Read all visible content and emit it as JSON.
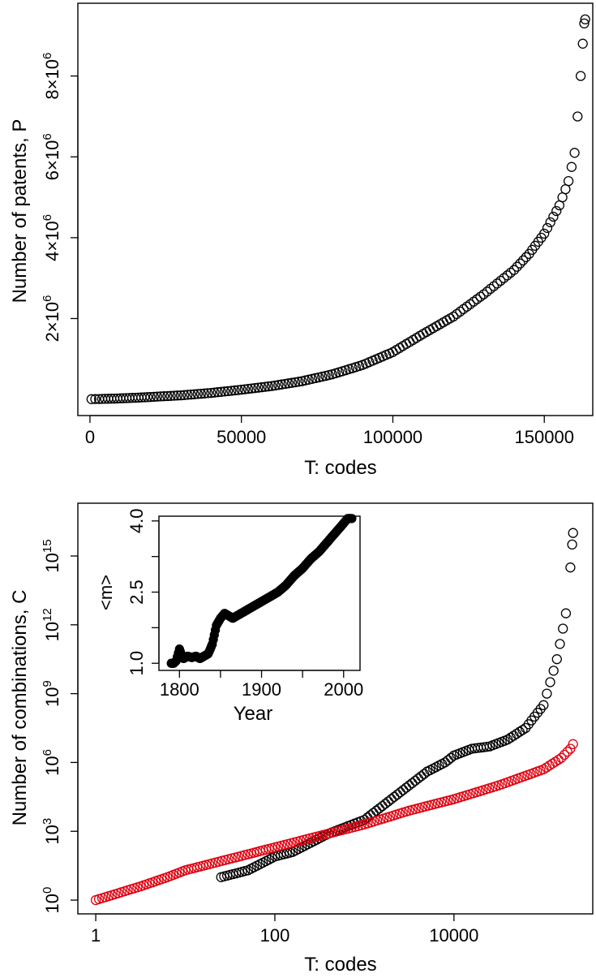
{
  "chart_data": [
    {
      "type": "scatter",
      "xlabel": "T: codes",
      "ylabel": "Number of patents, P",
      "x_ticks": [
        "0",
        "50000",
        "100000",
        "150000"
      ],
      "y_ticks": [
        {
          "mantissa": "2",
          "exp": "6",
          "value": 2000000
        },
        {
          "mantissa": "4",
          "exp": "6",
          "value": 4000000
        },
        {
          "mantissa": "6",
          "exp": "6",
          "value": 6000000
        },
        {
          "mantissa": "8",
          "exp": "6",
          "value": 8000000
        }
      ],
      "xlim": [
        -4000,
        166000
      ],
      "ylim": [
        -400000,
        9800000
      ],
      "marker": "open-circle",
      "series": [
        {
          "color": "#000000",
          "points": [
            [
              500,
              5000
            ],
            [
              3000,
              10000
            ],
            [
              6000,
              15000
            ],
            [
              10000,
              25000
            ],
            [
              15000,
              40000
            ],
            [
              20000,
              60000
            ],
            [
              30000,
              100000
            ],
            [
              40000,
              160000
            ],
            [
              50000,
              240000
            ],
            [
              60000,
              330000
            ],
            [
              70000,
              450000
            ],
            [
              80000,
              620000
            ],
            [
              90000,
              850000
            ],
            [
              100000,
              1170000
            ],
            [
              110000,
              1620000
            ],
            [
              120000,
              2050000
            ],
            [
              130000,
              2600000
            ],
            [
              140000,
              3200000
            ],
            [
              145000,
              3600000
            ],
            [
              150000,
              4100000
            ],
            [
              155000,
              4800000
            ],
            [
              158000,
              5400000
            ],
            [
              160000,
              6100000
            ],
            [
              161000,
              7000000
            ],
            [
              162000,
              8000000
            ],
            [
              162700,
              8800000
            ],
            [
              163200,
              9300000
            ],
            [
              163500,
              9400000
            ]
          ]
        }
      ]
    },
    {
      "type": "scatter",
      "xlabel": "T: codes",
      "ylabel": "Number of combinations, C",
      "x_scale": "log",
      "y_scale": "log",
      "x_ticks": [
        "1",
        "100",
        "10000"
      ],
      "y_ticks": [
        {
          "mantissa": "10",
          "exp": "0",
          "value": 1
        },
        {
          "mantissa": "10",
          "exp": "3",
          "value": 1000
        },
        {
          "mantissa": "10",
          "exp": "6",
          "value": 1000000
        },
        {
          "mantissa": "10",
          "exp": "9",
          "value": 1000000000
        },
        {
          "mantissa": "10",
          "exp": "12",
          "value": 1000000000000
        },
        {
          "mantissa": "10",
          "exp": "15",
          "value": 1000000000000000
        }
      ],
      "xlim_log10": [
        -0.2,
        5.55
      ],
      "ylim_log10": [
        -0.6,
        17.3
      ],
      "marker": "open-circle",
      "series": [
        {
          "color": "#000000",
          "points_log10": [
            [
              1.4,
              1.0
            ],
            [
              1.7,
              1.3
            ],
            [
              1.9,
              1.7
            ],
            [
              2.0,
              1.9
            ],
            [
              2.2,
              2.1
            ],
            [
              2.4,
              2.5
            ],
            [
              2.6,
              2.9
            ],
            [
              3.0,
              3.5
            ],
            [
              3.3,
              4.4
            ],
            [
              3.5,
              5.0
            ],
            [
              3.7,
              5.6
            ],
            [
              3.9,
              6.0
            ],
            [
              4.0,
              6.3
            ],
            [
              4.2,
              6.6
            ],
            [
              4.4,
              6.7
            ],
            [
              4.6,
              7.0
            ],
            [
              4.8,
              7.5
            ],
            [
              5.0,
              8.5
            ],
            [
              5.15,
              10.5
            ],
            [
              5.25,
              12.5
            ],
            [
              5.3,
              14.5
            ],
            [
              5.32,
              15.5
            ],
            [
              5.33,
              16.0
            ]
          ]
        },
        {
          "color": "#e0000f",
          "points_log10": [
            [
              0.0,
              0.0
            ],
            [
              0.5,
              0.6
            ],
            [
              0.8,
              1.0
            ],
            [
              1.0,
              1.3
            ],
            [
              1.3,
              1.6
            ],
            [
              1.7,
              2.0
            ],
            [
              2.0,
              2.3
            ],
            [
              2.5,
              2.8
            ],
            [
              3.0,
              3.3
            ],
            [
              3.5,
              3.9
            ],
            [
              4.0,
              4.4
            ],
            [
              4.5,
              5.0
            ],
            [
              5.0,
              5.7
            ],
            [
              5.2,
              6.2
            ],
            [
              5.3,
              6.6
            ],
            [
              5.33,
              6.8
            ]
          ]
        }
      ],
      "inset": {
        "type": "scatter",
        "xlabel": "Year",
        "ylabel": "<m>",
        "x_ticks": [
          "1800",
          "1900",
          "2000"
        ],
        "y_ticks": [
          "1.0",
          "2.5",
          "4.0"
        ],
        "xlim": [
          1775,
          2020
        ],
        "ylim": [
          0.85,
          4.1
        ],
        "marker": "filled-circle",
        "series": [
          {
            "color": "#000000",
            "points": [
              [
                1790,
                1.0
              ],
              [
                1793,
                1.0
              ],
              [
                1796,
                1.05
              ],
              [
                1800,
                1.3
              ],
              [
                1802,
                1.2
              ],
              [
                1805,
                1.1
              ],
              [
                1810,
                1.15
              ],
              [
                1815,
                1.12
              ],
              [
                1820,
                1.15
              ],
              [
                1825,
                1.1
              ],
              [
                1830,
                1.15
              ],
              [
                1835,
                1.2
              ],
              [
                1840,
                1.4
              ],
              [
                1845,
                1.8
              ],
              [
                1850,
                1.95
              ],
              [
                1855,
                2.05
              ],
              [
                1860,
                2.0
              ],
              [
                1865,
                1.95
              ],
              [
                1870,
                2.0
              ],
              [
                1880,
                2.1
              ],
              [
                1890,
                2.2
              ],
              [
                1900,
                2.3
              ],
              [
                1910,
                2.4
              ],
              [
                1920,
                2.5
              ],
              [
                1930,
                2.65
              ],
              [
                1940,
                2.85
              ],
              [
                1950,
                3.0
              ],
              [
                1960,
                3.2
              ],
              [
                1970,
                3.35
              ],
              [
                1980,
                3.55
              ],
              [
                1990,
                3.75
              ],
              [
                2000,
                3.95
              ],
              [
                2005,
                4.05
              ],
              [
                2010,
                4.05
              ]
            ]
          }
        ]
      }
    }
  ]
}
